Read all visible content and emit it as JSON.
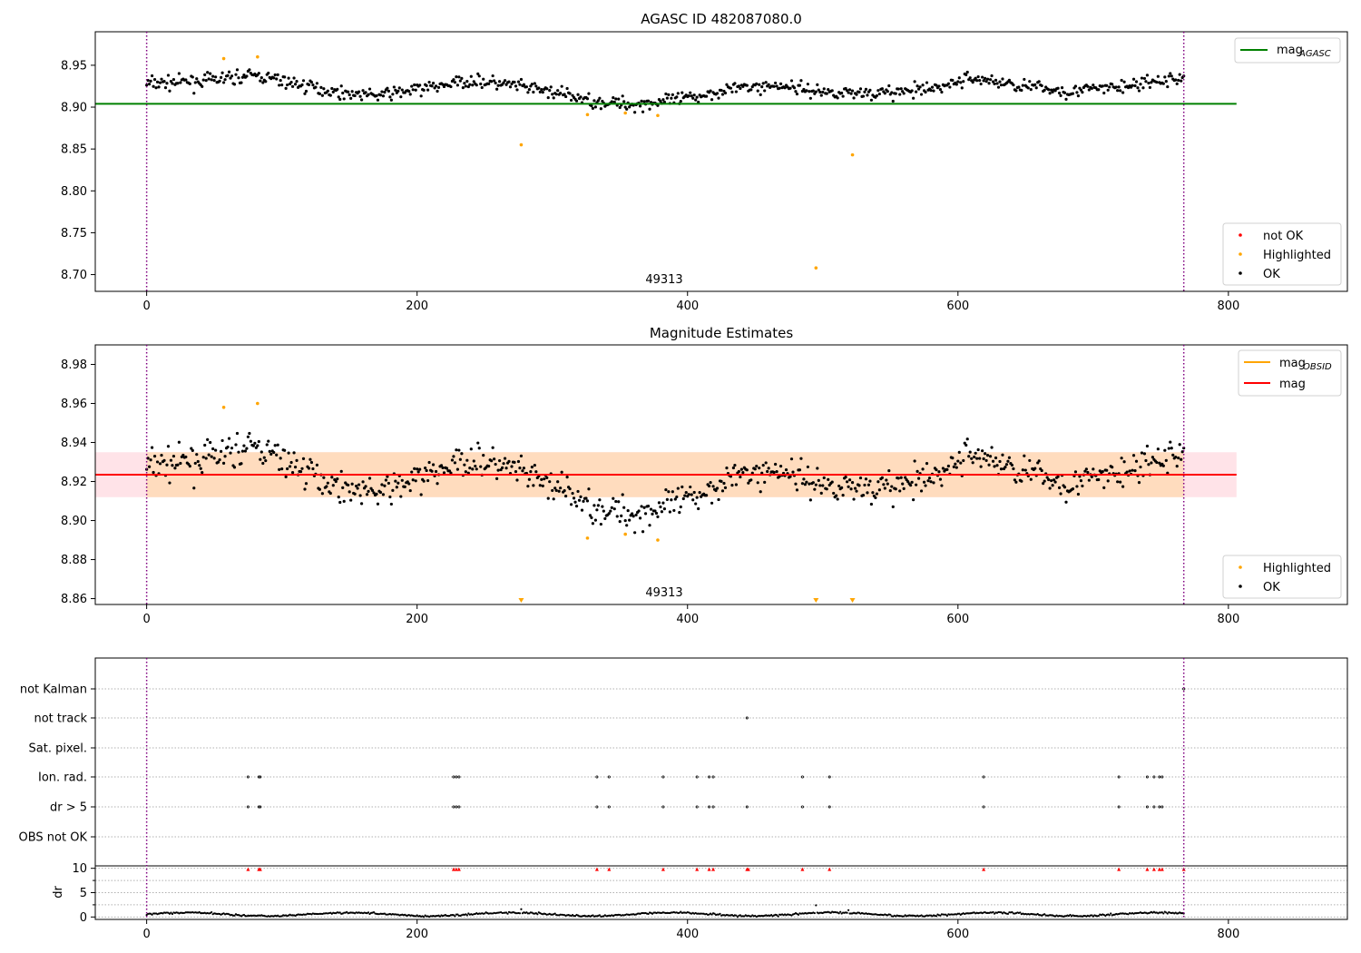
{
  "chart_data": [
    {
      "type": "scatter",
      "title": "AGASC ID 482087080.0",
      "xlim": [
        -38,
        888
      ],
      "ylim": [
        8.68,
        8.99
      ],
      "x_ticks": [
        "0",
        "200",
        "400",
        "600",
        "800"
      ],
      "y_ticks": [
        "8.70",
        "8.75",
        "8.80",
        "8.85",
        "8.90",
        "8.95"
      ],
      "obsid_label": "49313",
      "obsid_bounds": [
        0,
        767
      ],
      "mag_agasc": 8.904,
      "mag_agasc_xrange": [
        -38,
        806
      ],
      "line_legend": {
        "main": "mag",
        "sub": "AGASC"
      },
      "marker_legend": [
        "not OK",
        "Highlighted",
        "OK"
      ],
      "highlighted": [
        [
          57,
          8.958
        ],
        [
          82,
          8.96
        ],
        [
          277,
          8.855
        ],
        [
          326,
          8.891
        ],
        [
          354,
          8.893
        ],
        [
          378,
          8.89
        ],
        [
          495,
          8.708
        ],
        [
          522,
          8.843
        ]
      ],
      "colors": {
        "ok": "#000000",
        "highlighted": "#ffa500",
        "not_ok": "#ff0000",
        "line": "#008000",
        "bound": "#800080"
      }
    },
    {
      "type": "scatter",
      "title": "Magnitude Estimates",
      "xlim": [
        -38,
        888
      ],
      "ylim": [
        8.857,
        8.99
      ],
      "x_ticks": [
        "0",
        "200",
        "400",
        "600",
        "800"
      ],
      "y_ticks": [
        "8.86",
        "8.88",
        "8.90",
        "8.92",
        "8.94",
        "8.96",
        "8.98"
      ],
      "obsid_label": "49313",
      "mag": 8.9235,
      "mag_obsid": 8.9235,
      "band": [
        8.912,
        8.935
      ],
      "band_xrange": [
        -38,
        806
      ],
      "band_obsid_xrange": [
        0,
        767
      ],
      "line_legend": [
        {
          "main": "mag",
          "sub": "OBSID"
        },
        {
          "main": "mag",
          "sub": ""
        }
      ],
      "marker_legend": [
        "Highlighted",
        "OK"
      ],
      "highlighted": [
        [
          57,
          8.958
        ],
        [
          82,
          8.96
        ],
        [
          326,
          8.891
        ],
        [
          354,
          8.893
        ],
        [
          378,
          8.89
        ]
      ],
      "off_scale_low_x": [
        277,
        495,
        522
      ],
      "colors": {
        "ok": "#000000",
        "highlighted": "#ffa500",
        "mag": "#ff0000",
        "mag_obsid": "#ffa500",
        "band": "#ffc0cb",
        "band_obsid": "#ffdab9",
        "bound": "#800080"
      }
    },
    {
      "type": "scatter",
      "title": "",
      "xlim": [
        -38,
        888
      ],
      "x_ticks": [
        "0",
        "200",
        "400",
        "600",
        "800"
      ],
      "flag_labels": [
        "not Kalman",
        "not track",
        "Sat. pixel.",
        "Ion. rad.",
        "dr > 5",
        "OBS not OK"
      ],
      "flags": {
        "not Kalman": [
          767
        ],
        "not track": [
          444
        ],
        "Sat. pixel.": [],
        "Ion. rad.": [
          75,
          83,
          84,
          227,
          229,
          231,
          333,
          342,
          382,
          407,
          416,
          419,
          485,
          505,
          619,
          719,
          740,
          745,
          749,
          751
        ],
        "dr > 5": [
          75,
          83,
          84,
          227,
          229,
          231,
          333,
          342,
          382,
          407,
          416,
          419,
          444,
          485,
          505,
          619,
          719,
          740,
          745,
          749,
          751
        ],
        "OBS not OK": []
      },
      "dr_ylabel": "dr",
      "dr_ylim": [
        -0.5,
        10.5
      ],
      "dr_y_ticks": [
        "0",
        "5",
        "10"
      ],
      "dr_clipped_x": [
        75,
        83,
        84,
        227,
        229,
        231,
        333,
        342,
        382,
        407,
        416,
        419,
        444,
        445,
        485,
        505,
        619,
        719,
        740,
        745,
        749,
        751,
        767
      ],
      "dr_outliers": [
        [
          277,
          1.6
        ],
        [
          495,
          2.4
        ],
        [
          519,
          1.4
        ]
      ],
      "colors": {
        "flag": "#000000",
        "clipped": "#ff0000",
        "grid": "#b0b0b0",
        "bound": "#800080"
      }
    }
  ]
}
